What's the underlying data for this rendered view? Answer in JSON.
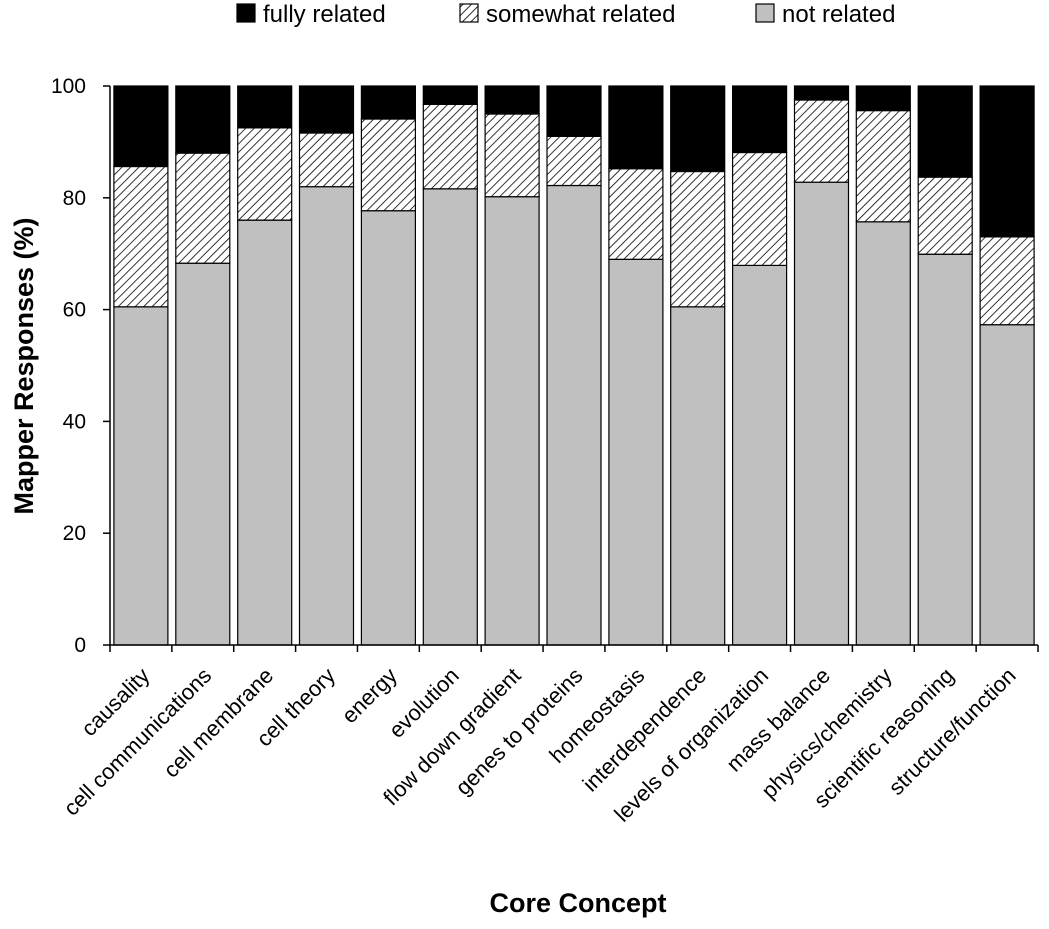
{
  "chart_data": {
    "type": "bar",
    "stacked": true,
    "title": "",
    "xlabel": "Core Concept",
    "ylabel": "Mapper Responses (%)",
    "ylim": [
      0,
      100
    ],
    "yticks": [
      0,
      20,
      40,
      60,
      80,
      100
    ],
    "legend_position": "top",
    "categories": [
      "causality",
      "cell communications",
      "cell membrane",
      "cell theory",
      "energy",
      "evolution",
      "flow down gradient",
      "genes to proteins",
      "homeostasis",
      "interdependence",
      "levels of organization",
      "mass balance",
      "physics/chemistry",
      "scientific reasoning",
      "structure/function"
    ],
    "series": [
      {
        "name": "not related",
        "style": "gray",
        "color": "#c0c0c0",
        "values": [
          60.5,
          68.3,
          76.0,
          82.0,
          77.7,
          81.6,
          80.2,
          82.2,
          69.0,
          60.5,
          67.9,
          82.8,
          75.7,
          69.9,
          57.3
        ]
      },
      {
        "name": "somewhat related",
        "style": "hatched",
        "color": "#ffffff",
        "values": [
          25.1,
          19.7,
          16.5,
          9.6,
          16.4,
          15.1,
          14.8,
          8.8,
          16.2,
          24.2,
          20.2,
          14.7,
          19.9,
          13.8,
          15.7
        ]
      },
      {
        "name": "fully related",
        "style": "black",
        "color": "#000000",
        "values": [
          14.4,
          12.0,
          7.5,
          8.4,
          5.9,
          3.3,
          5.0,
          9.0,
          14.8,
          15.3,
          11.9,
          2.5,
          4.4,
          16.3,
          27.0
        ]
      }
    ],
    "legend_order": [
      "fully related",
      "somewhat related",
      "not related"
    ]
  }
}
